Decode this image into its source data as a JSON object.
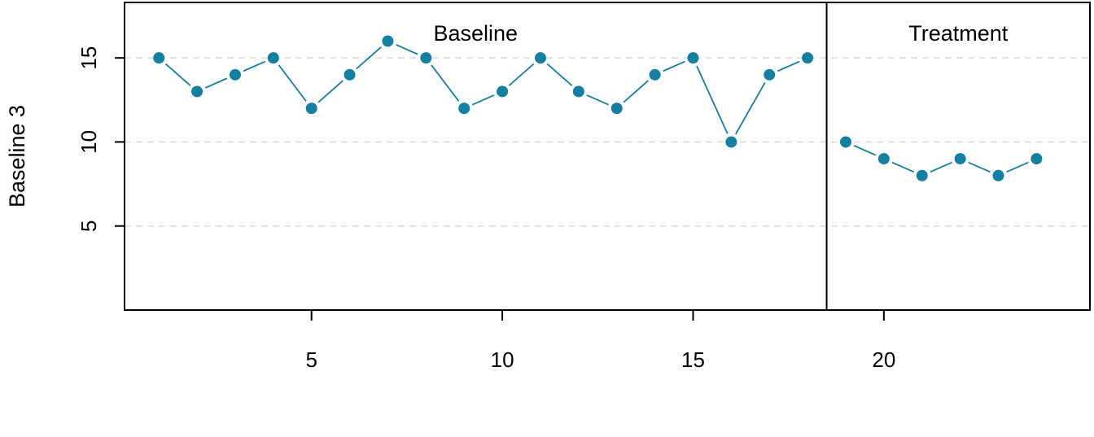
{
  "chart_data": {
    "type": "line",
    "ylabel": "Baseline 3",
    "xlabel": "",
    "x": [
      1,
      2,
      3,
      4,
      5,
      6,
      7,
      8,
      9,
      10,
      11,
      12,
      13,
      14,
      15,
      16,
      17,
      18,
      19,
      20,
      21,
      22,
      23,
      24
    ],
    "xlim": [
      0.1,
      25.4
    ],
    "ylim": [
      0,
      18.3
    ],
    "x_ticks": [
      5,
      10,
      15,
      20
    ],
    "y_ticks": [
      5,
      10,
      15
    ],
    "grid": "horizontal dashed at y ticks",
    "marker_color": "#1380a1",
    "line_color": "#1380a1",
    "grid_color": "#d9d9d9",
    "phases": [
      {
        "name": "Baseline",
        "x": [
          1,
          2,
          3,
          4,
          5,
          6,
          7,
          8,
          9,
          10,
          11,
          12,
          13,
          14,
          15,
          16,
          17,
          18
        ],
        "values": [
          15,
          13,
          14,
          15,
          12,
          14,
          16,
          15,
          12,
          13,
          15,
          13,
          12,
          14,
          15,
          10,
          14,
          15
        ]
      },
      {
        "name": "Treatment",
        "x": [
          19,
          20,
          21,
          22,
          23,
          24
        ],
        "values": [
          10,
          9,
          8,
          9,
          8,
          9
        ]
      }
    ],
    "phase_boundary": 18.5
  }
}
